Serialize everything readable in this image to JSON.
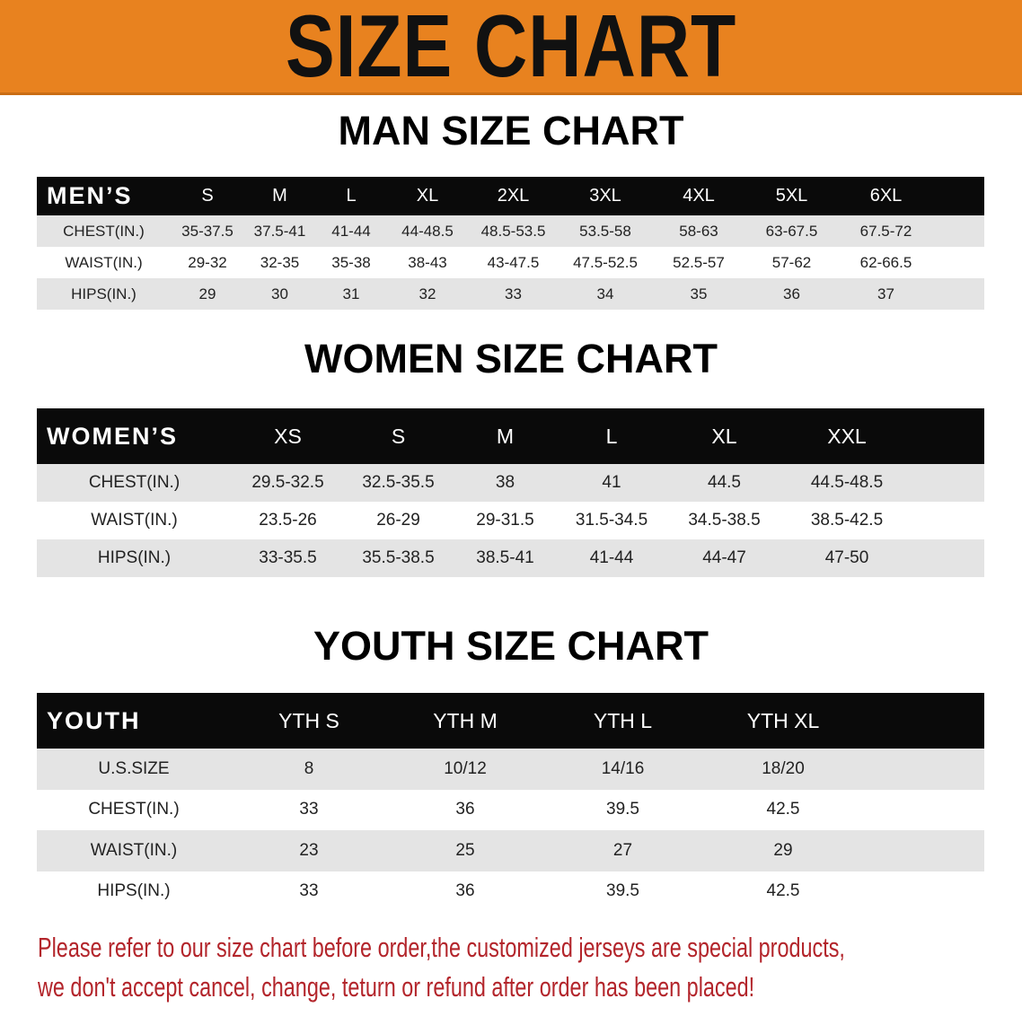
{
  "banner": {
    "title": "SIZE CHART",
    "color": "#e8821f"
  },
  "men": {
    "title": "MAN SIZE CHART",
    "header": [
      "MEN’S",
      "S",
      "M",
      "L",
      "XL",
      "2XL",
      "3XL",
      "4XL",
      "5XL",
      "6XL"
    ],
    "rows": [
      [
        "CHEST(IN.)",
        "35-37.5",
        "37.5-41",
        "41-44",
        "44-48.5",
        "48.5-53.5",
        "53.5-58",
        "58-63",
        "63-67.5",
        "67.5-72"
      ],
      [
        "WAIST(IN.)",
        "29-32",
        "32-35",
        "35-38",
        "38-43",
        "43-47.5",
        "47.5-52.5",
        "52.5-57",
        "57-62",
        "62-66.5"
      ],
      [
        "HIPS(IN.)",
        "29",
        "30",
        "31",
        "32",
        "33",
        "34",
        "35",
        "36",
        "37"
      ]
    ]
  },
  "women": {
    "title": "WOMEN SIZE CHART",
    "header": [
      "WOMEN’S",
      "XS",
      "S",
      "M",
      "L",
      "XL",
      "XXL"
    ],
    "rows": [
      [
        "CHEST(IN.)",
        "29.5-32.5",
        "32.5-35.5",
        "38",
        "41",
        "44.5",
        "44.5-48.5"
      ],
      [
        "WAIST(IN.)",
        "23.5-26",
        "26-29",
        "29-31.5",
        "31.5-34.5",
        "34.5-38.5",
        "38.5-42.5"
      ],
      [
        "HIPS(IN.)",
        "33-35.5",
        "35.5-38.5",
        "38.5-41",
        "41-44",
        "44-47",
        "47-50"
      ]
    ]
  },
  "youth": {
    "title": "YOUTH SIZE CHART",
    "header": [
      "YOUTH",
      "YTH S",
      "YTH M",
      "YTH L",
      "YTH XL"
    ],
    "rows": [
      [
        "U.S.SIZE",
        "8",
        "10/12",
        "14/16",
        "18/20"
      ],
      [
        "CHEST(IN.)",
        "33",
        "36",
        "39.5",
        "42.5"
      ],
      [
        "WAIST(IN.)",
        "23",
        "25",
        "27",
        "29"
      ],
      [
        "HIPS(IN.)",
        "33",
        "36",
        "39.5",
        "42.5"
      ]
    ]
  },
  "note": {
    "line1": "Please refer to our size chart before order,the customized jerseys are special products,",
    "line2": "we don't accept cancel, change, teturn or refund after order has been placed!",
    "color": "#b3252b"
  }
}
